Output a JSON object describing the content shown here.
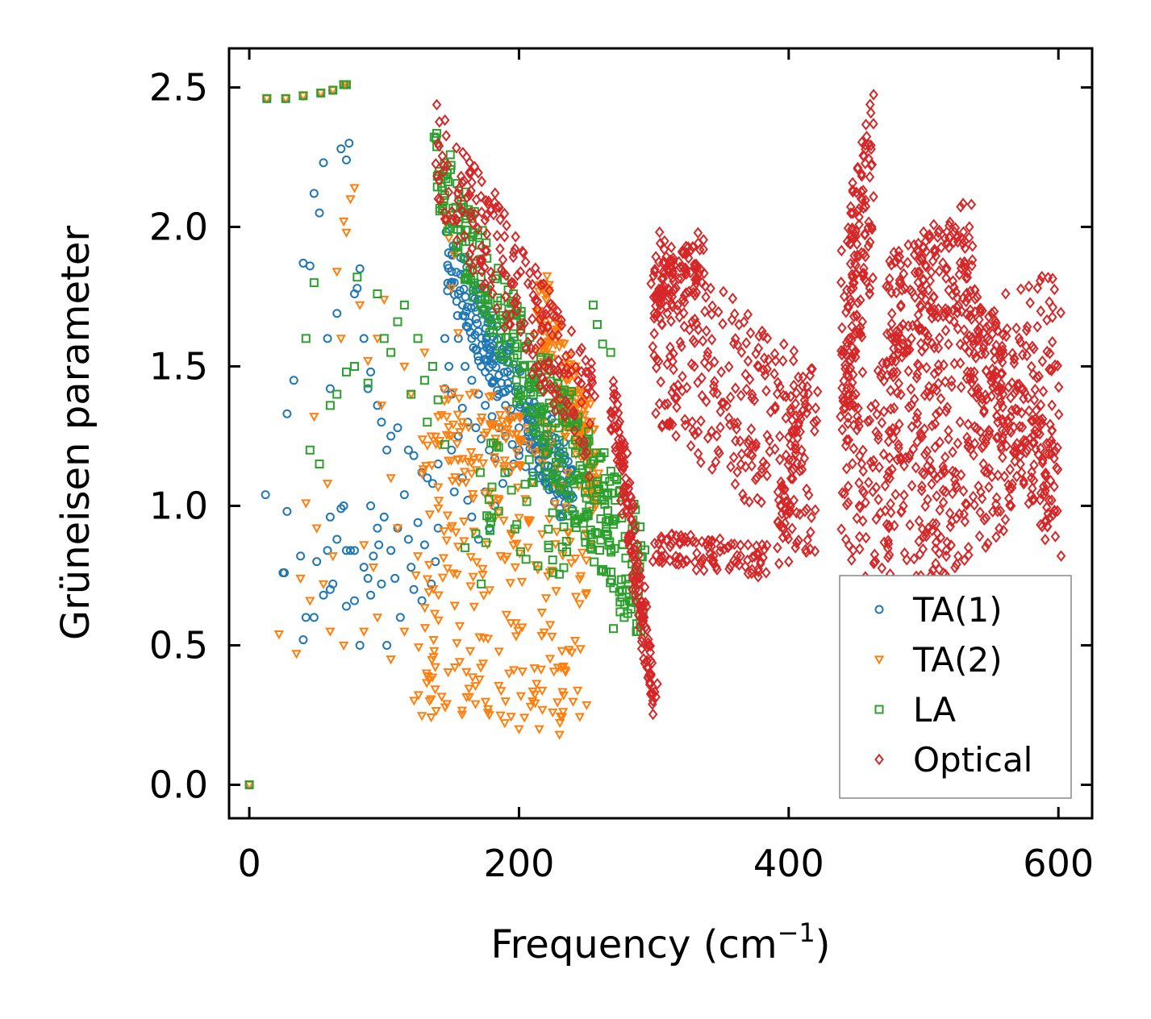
{
  "chart_data": {
    "type": "scatter",
    "xlabel_main": "Frequency (cm",
    "xlabel_sup": "−1",
    "xlabel_close": ")",
    "ylabel": "Grüneisen parameter",
    "xlim": [
      -15,
      625
    ],
    "ylim": [
      -0.12,
      2.64
    ],
    "xticks": [
      0,
      200,
      400,
      600
    ],
    "xtick_labels": [
      "0",
      "200",
      "400",
      "600"
    ],
    "yticks": [
      0.0,
      0.5,
      1.0,
      1.5,
      2.0,
      2.5
    ],
    "ytick_labels": [
      "0.0",
      "0.5",
      "1.0",
      "1.5",
      "2.0",
      "2.5"
    ],
    "legend_position": "lower-right",
    "series": [
      {
        "name": "TA(1)",
        "marker": "circle",
        "color": "#1f77b4",
        "points": [
          [
            0,
            0
          ],
          [
            13,
            2.46
          ],
          [
            27,
            2.46
          ],
          [
            40,
            2.47
          ],
          [
            53,
            2.48
          ],
          [
            62,
            2.49
          ],
          [
            70,
            2.51
          ],
          [
            72,
            2.51
          ],
          [
            12,
            1.04
          ],
          [
            28,
            0.98
          ],
          [
            25,
            0.76
          ],
          [
            26,
            0.76
          ],
          [
            38,
            0.82
          ],
          [
            40,
            0.52
          ],
          [
            42,
            0.6
          ],
          [
            48,
            0.6
          ],
          [
            50,
            0.8
          ],
          [
            55,
            0.68
          ],
          [
            58,
            0.84
          ],
          [
            60,
            0.7
          ],
          [
            60,
            0.96
          ],
          [
            62,
            0.72
          ],
          [
            65,
            0.88
          ],
          [
            68,
            0.99
          ],
          [
            70,
            1.0
          ],
          [
            72,
            0.84
          ],
          [
            75,
            0.84
          ],
          [
            78,
            0.84
          ],
          [
            72,
            0.64
          ],
          [
            78,
            0.66
          ],
          [
            82,
            0.5
          ],
          [
            85,
            0.78
          ],
          [
            88,
            0.74
          ],
          [
            90,
            0.68
          ],
          [
            90,
            1.0
          ],
          [
            92,
            0.82
          ],
          [
            95,
            0.92
          ],
          [
            96,
            0.86
          ],
          [
            98,
            0.72
          ],
          [
            100,
            0.96
          ],
          [
            102,
            0.5
          ],
          [
            105,
            0.84
          ],
          [
            108,
            0.74
          ],
          [
            110,
            0.92
          ],
          [
            112,
            0.6
          ],
          [
            115,
            1.04
          ],
          [
            118,
            0.88
          ],
          [
            120,
            0.78
          ],
          [
            122,
            0.7
          ],
          [
            125,
            0.94
          ],
          [
            128,
            0.66
          ],
          [
            130,
            0.86
          ],
          [
            135,
            0.72
          ],
          [
            138,
            0.8
          ],
          [
            140,
            0.92
          ],
          [
            28,
            1.33
          ],
          [
            33,
            1.45
          ],
          [
            40,
            1.87
          ],
          [
            45,
            1.86
          ],
          [
            48,
            2.12
          ],
          [
            52,
            2.05
          ],
          [
            55,
            2.23
          ],
          [
            58,
            1.6
          ],
          [
            60,
            1.42
          ],
          [
            65,
            1.69
          ],
          [
            68,
            2.28
          ],
          [
            72,
            2.24
          ],
          [
            74,
            2.3
          ],
          [
            78,
            1.76
          ],
          [
            80,
            1.78
          ],
          [
            82,
            1.85
          ],
          [
            85,
            1.6
          ],
          [
            88,
            1.42
          ],
          [
            90,
            1.48
          ],
          [
            95,
            1.36
          ],
          [
            98,
            1.3
          ],
          [
            102,
            1.2
          ],
          [
            105,
            1.25
          ],
          [
            110,
            1.28
          ],
          [
            118,
            1.2
          ],
          [
            122,
            1.18
          ],
          [
            128,
            1.12
          ],
          [
            132,
            1.1
          ],
          [
            136,
            1.08
          ],
          [
            140,
            1.15
          ],
          [
            145,
            1.6
          ],
          [
            148,
            1.5
          ],
          [
            150,
            1.2
          ],
          [
            152,
            1.05
          ],
          [
            155,
            1.25
          ],
          [
            158,
            1.1
          ],
          [
            162,
            1.02
          ],
          [
            165,
            0.96
          ],
          [
            170,
            0.88
          ],
          [
            175,
            1.05
          ],
          [
            178,
            0.92
          ],
          [
            182,
            1.0
          ],
          [
            188,
            1.08
          ],
          [
            192,
            1.12
          ],
          [
            196,
            1.15
          ],
          [
            200,
            1.18
          ],
          [
            205,
            1.14
          ],
          [
            210,
            1.12
          ],
          [
            215,
            1.1
          ],
          [
            220,
            1.08
          ],
          [
            225,
            1.06
          ],
          [
            230,
            1.05
          ],
          [
            236,
            1.04
          ],
          [
            240,
            1.03
          ],
          [
            150,
            1.84
          ],
          [
            152,
            1.8
          ],
          [
            155,
            1.76
          ],
          [
            158,
            1.72
          ],
          [
            160,
            1.68
          ],
          [
            162,
            1.64
          ],
          [
            165,
            1.6
          ],
          [
            168,
            1.56
          ],
          [
            170,
            1.52
          ],
          [
            172,
            1.5
          ],
          [
            175,
            1.48
          ],
          [
            178,
            1.46
          ],
          [
            180,
            1.44
          ],
          [
            185,
            1.4
          ],
          [
            190,
            1.36
          ],
          [
            195,
            1.32
          ],
          [
            200,
            1.28
          ],
          [
            205,
            1.24
          ],
          [
            210,
            1.2
          ],
          [
            215,
            1.16
          ],
          [
            220,
            1.12
          ],
          [
            225,
            1.09
          ],
          [
            230,
            1.06
          ],
          [
            155,
            1.6
          ],
          [
            160,
            1.5
          ],
          [
            165,
            1.45
          ],
          [
            170,
            1.4
          ],
          [
            175,
            1.36
          ],
          [
            180,
            1.32
          ],
          [
            185,
            1.28
          ],
          [
            190,
            1.25
          ],
          [
            195,
            1.22
          ],
          [
            200,
            1.2
          ],
          [
            158,
            1.35
          ],
          [
            162,
            1.3
          ],
          [
            168,
            1.28
          ],
          [
            172,
            1.24
          ],
          [
            178,
            1.2
          ],
          [
            182,
            1.17
          ],
          [
            150,
            1.4
          ],
          [
            145,
            1.42
          ]
        ],
        "bands": [
          {
            "x0": 148,
            "y0": 1.86,
            "x1": 238,
            "y1": 1.04,
            "spread": 0.13,
            "count": 220
          }
        ]
      },
      {
        "name": "TA(2)",
        "marker": "triangle-down",
        "color": "#ff7f0e",
        "points": [
          [
            0,
            0
          ],
          [
            13,
            2.46
          ],
          [
            27,
            2.46
          ],
          [
            40,
            2.47
          ],
          [
            53,
            2.48
          ],
          [
            62,
            2.49
          ],
          [
            70,
            2.51
          ],
          [
            72,
            2.51
          ],
          [
            22,
            0.54
          ],
          [
            35,
            0.47
          ],
          [
            38,
            0.74
          ],
          [
            42,
            1.01
          ],
          [
            45,
            0.66
          ],
          [
            48,
            1.32
          ],
          [
            50,
            0.92
          ],
          [
            55,
            0.72
          ],
          [
            58,
            1.08
          ],
          [
            62,
            0.82
          ],
          [
            65,
            1.84
          ],
          [
            68,
            1.6
          ],
          [
            70,
            2.02
          ],
          [
            72,
            1.98
          ],
          [
            75,
            2.1
          ],
          [
            78,
            2.14
          ],
          [
            82,
            1.72
          ],
          [
            85,
            0.86
          ],
          [
            88,
            1.52
          ],
          [
            92,
            0.78
          ],
          [
            95,
            1.6
          ],
          [
            98,
            1.36
          ],
          [
            100,
            1.74
          ],
          [
            105,
            1.1
          ],
          [
            110,
            0.92
          ],
          [
            115,
            1.5
          ],
          [
            120,
            1.4
          ],
          [
            125,
            0.82
          ],
          [
            130,
            1.55
          ],
          [
            135,
            1.25
          ],
          [
            140,
            1.32
          ],
          [
            142,
            2.08
          ],
          [
            145,
            2.02
          ],
          [
            148,
            1.96
          ],
          [
            150,
            1.78
          ],
          [
            152,
            1.9
          ],
          [
            155,
            1.62
          ],
          [
            200,
            0.2
          ],
          [
            215,
            0.2
          ],
          [
            230,
            0.18
          ],
          [
            225,
            0.26
          ],
          [
            210,
            0.3
          ],
          [
            190,
            0.3
          ],
          [
            60,
            0.55
          ],
          [
            70,
            0.5
          ],
          [
            85,
            0.55
          ],
          [
            95,
            0.6
          ],
          [
            105,
            0.45
          ],
          [
            115,
            0.55
          ]
        ],
        "bands": [
          {
            "x0": 125,
            "y0": 0.78,
            "x1": 255,
            "y1": 0.76,
            "spread": 0.55,
            "count": 260
          },
          {
            "x0": 215,
            "y0": 1.72,
            "x1": 258,
            "y1": 1.1,
            "spread": 0.16,
            "count": 180
          },
          {
            "x0": 140,
            "y0": 1.3,
            "x1": 210,
            "y1": 1.22,
            "spread": 0.14,
            "count": 60
          }
        ]
      },
      {
        "name": "LA",
        "marker": "square",
        "color": "#2ca02c",
        "points": [
          [
            0,
            0
          ],
          [
            13,
            2.46
          ],
          [
            27,
            2.46
          ],
          [
            40,
            2.47
          ],
          [
            53,
            2.48
          ],
          [
            62,
            2.49
          ],
          [
            70,
            2.51
          ],
          [
            72,
            2.51
          ],
          [
            42,
            1.6
          ],
          [
            45,
            1.2
          ],
          [
            48,
            1.8
          ],
          [
            52,
            1.15
          ],
          [
            60,
            1.36
          ],
          [
            65,
            1.4
          ],
          [
            72,
            1.48
          ],
          [
            78,
            1.5
          ],
          [
            80,
            1.82
          ],
          [
            88,
            1.44
          ],
          [
            95,
            1.76
          ],
          [
            100,
            1.6
          ],
          [
            105,
            1.55
          ],
          [
            110,
            1.66
          ],
          [
            115,
            1.72
          ],
          [
            120,
            1.4
          ],
          [
            125,
            1.6
          ],
          [
            130,
            1.45
          ],
          [
            132,
            1.3
          ],
          [
            136,
            1.5
          ],
          [
            140,
            1.38
          ],
          [
            145,
            1.22
          ],
          [
            255,
            1.72
          ],
          [
            258,
            1.65
          ],
          [
            262,
            1.58
          ],
          [
            268,
            1.55
          ],
          [
            270,
            0.56
          ],
          [
            275,
            0.62
          ],
          [
            278,
            0.6
          ],
          [
            282,
            0.66
          ],
          [
            285,
            0.68
          ],
          [
            288,
            0.55
          ],
          [
            290,
            0.58
          ],
          [
            292,
            0.62
          ],
          [
            160,
            0.85
          ],
          [
            168,
            0.9
          ],
          [
            172,
            0.72
          ]
        ],
        "bands": [
          {
            "x0": 135,
            "y0": 2.22,
            "x1": 218,
            "y1": 1.35,
            "spread": 0.16,
            "count": 180
          },
          {
            "x0": 218,
            "y0": 1.35,
            "x1": 292,
            "y1": 0.72,
            "spread": 0.22,
            "count": 200
          },
          {
            "x0": 170,
            "y0": 1.05,
            "x1": 245,
            "y1": 0.9,
            "spread": 0.2,
            "count": 50
          }
        ]
      },
      {
        "name": "Optical",
        "marker": "diamond",
        "color": "#d62728",
        "points": [
          [
            368,
            1.14
          ],
          [
            373,
            1.18
          ],
          [
            380,
            1.12
          ],
          [
            392,
            1.05
          ],
          [
            400,
            0.8
          ],
          [
            405,
            0.85
          ],
          [
            412,
            0.98
          ],
          [
            420,
            1.35
          ],
          [
            485,
            1.0
          ],
          [
            510,
            1.1
          ],
          [
            530,
            0.97
          ],
          [
            545,
            0.95
          ],
          [
            555,
            0.98
          ],
          [
            565,
            1.0
          ],
          [
            580,
            1.1
          ],
          [
            595,
            1.02
          ],
          [
            330,
            1.5
          ],
          [
            340,
            1.55
          ],
          [
            350,
            1.48
          ]
        ],
        "bands": [
          {
            "x0": 138,
            "y0": 2.28,
            "x1": 255,
            "y1": 1.3,
            "spread": 0.2,
            "count": 230
          },
          {
            "x0": 270,
            "y0": 1.38,
            "x1": 300,
            "y1": 0.3,
            "spread": 0.1,
            "count": 160
          },
          {
            "x0": 300,
            "y0": 1.75,
            "x1": 335,
            "y1": 1.88,
            "spread": 0.1,
            "count": 80
          },
          {
            "x0": 300,
            "y0": 1.65,
            "x1": 420,
            "y1": 1.15,
            "spread": 0.35,
            "count": 280
          },
          {
            "x0": 300,
            "y0": 0.85,
            "x1": 385,
            "y1": 0.8,
            "spread": 0.06,
            "count": 100
          },
          {
            "x0": 390,
            "y0": 0.85,
            "x1": 410,
            "y1": 1.35,
            "spread": 0.1,
            "count": 50
          },
          {
            "x0": 440,
            "y0": 1.55,
            "x1": 462,
            "y1": 2.15,
            "spread": 0.35,
            "count": 160
          },
          {
            "x0": 440,
            "y0": 1.0,
            "x1": 600,
            "y1": 1.42,
            "spread": 0.45,
            "count": 480
          },
          {
            "x0": 475,
            "y0": 1.7,
            "x1": 535,
            "y1": 1.9,
            "spread": 0.2,
            "count": 180
          },
          {
            "x0": 535,
            "y0": 1.6,
            "x1": 600,
            "y1": 1.0,
            "spread": 0.2,
            "count": 150
          }
        ]
      }
    ]
  }
}
